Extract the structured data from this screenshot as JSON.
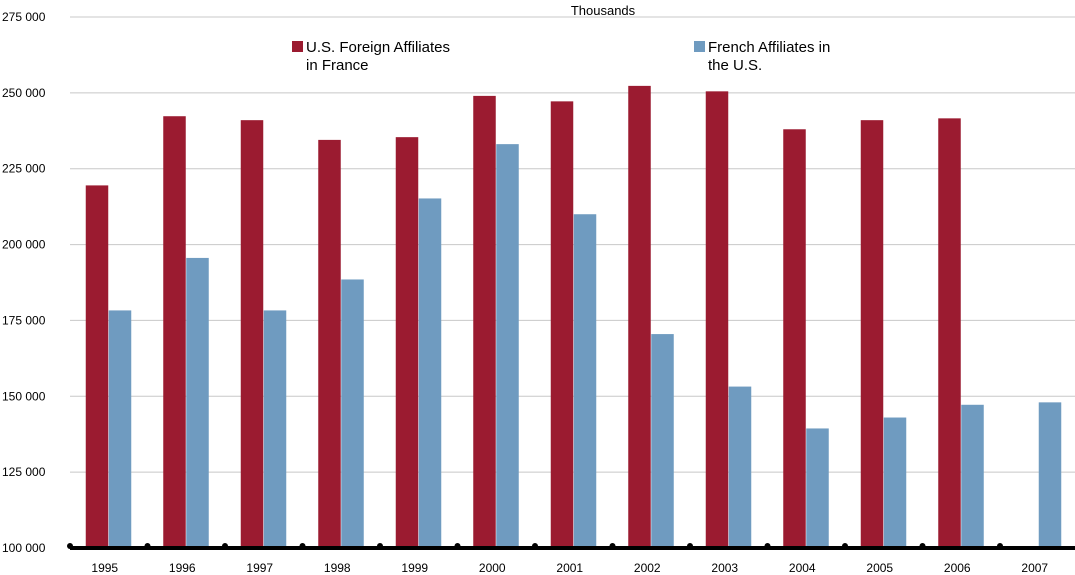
{
  "chart_data": {
    "type": "bar",
    "unit_label": "Thousands",
    "categories": [
      "1995",
      "1996",
      "1997",
      "1998",
      "1999",
      "2000",
      "2001",
      "2002",
      "2003",
      "2004",
      "2005",
      "2006",
      "2007"
    ],
    "y_tick_labels": [
      "100 000",
      "125 000",
      "150 000",
      "175 000",
      "200 000",
      "225 000",
      "250 000",
      "275 000"
    ],
    "ylim": [
      100000,
      275000
    ],
    "y_tick_step": 25000,
    "grid": true,
    "legend_position": "top",
    "series": [
      {
        "name_lines": [
          "U.S. Foreign Affiliates",
          "in France"
        ],
        "color": "#9b1b30",
        "values": [
          219500,
          242300,
          241000,
          234500,
          235400,
          249000,
          247200,
          252300,
          250500,
          238000,
          241000,
          241600,
          null
        ]
      },
      {
        "name_lines": [
          "French Affiliates in",
          "the U.S."
        ],
        "color": "#6f9bc0",
        "values": [
          178300,
          195600,
          178300,
          188500,
          215200,
          233100,
          210000,
          170500,
          153200,
          139400,
          143000,
          147200,
          148000
        ]
      }
    ]
  }
}
